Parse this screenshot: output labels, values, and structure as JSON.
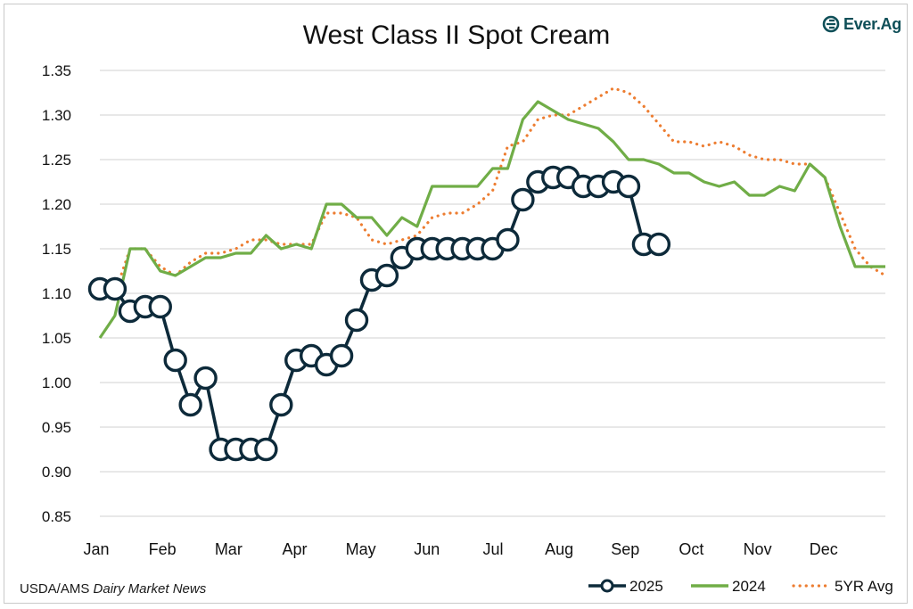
{
  "source": {
    "prefix": "USDA/AMS ",
    "italic": "Dairy Market News"
  },
  "logo": {
    "text": "Ever.Ag",
    "icon": "ever-ag-logo-icon",
    "color": "#0f4f58"
  },
  "chart_data": {
    "type": "line",
    "title": "West Class II Spot Cream",
    "xlabel": "",
    "ylabel": "",
    "ylim": [
      0.85,
      1.35
    ],
    "yticks": [
      "0.85",
      "0.90",
      "0.95",
      "1.00",
      "1.05",
      "1.10",
      "1.15",
      "1.20",
      "1.25",
      "1.30",
      "1.35"
    ],
    "x_unit": "week",
    "xlim": [
      0,
      52
    ],
    "categories": [
      "Jan",
      "Feb",
      "Mar",
      "Apr",
      "May",
      "Jun",
      "Jul",
      "Aug",
      "Sep",
      "Oct",
      "Nov",
      "Dec"
    ],
    "grid": true,
    "legend_position": "bottom-right",
    "series": [
      {
        "name": "2025",
        "color": "#0d2a3a",
        "style": "line-circle-markers",
        "x": [
          0,
          1,
          2,
          3,
          4,
          5,
          6,
          7,
          8,
          9,
          10,
          11,
          12,
          13,
          14,
          15,
          16,
          17,
          18,
          19,
          20,
          21,
          22,
          23,
          24,
          25,
          26,
          27,
          28,
          29,
          30,
          31,
          32,
          33,
          34,
          35,
          36,
          37
        ],
        "values": [
          1.105,
          1.105,
          1.08,
          1.085,
          1.085,
          1.025,
          0.975,
          1.005,
          0.925,
          0.925,
          0.925,
          0.925,
          0.975,
          1.025,
          1.03,
          1.02,
          1.03,
          1.07,
          1.115,
          1.12,
          1.14,
          1.15,
          1.15,
          1.15,
          1.15,
          1.15,
          1.15,
          1.16,
          1.205,
          1.225,
          1.23,
          1.23,
          1.22,
          1.22,
          1.225,
          1.22,
          1.155,
          1.155
        ]
      },
      {
        "name": "2024",
        "color": "#70ad47",
        "style": "solid",
        "x": [
          0,
          1,
          2,
          3,
          4,
          5,
          6,
          7,
          8,
          9,
          10,
          11,
          12,
          13,
          14,
          15,
          16,
          17,
          18,
          19,
          20,
          21,
          22,
          23,
          24,
          25,
          26,
          27,
          28,
          29,
          30,
          31,
          32,
          33,
          34,
          35,
          36,
          37,
          38,
          39,
          40,
          41,
          42,
          43,
          44,
          45,
          46,
          47,
          48,
          49,
          50,
          51,
          52
        ],
        "values": [
          1.05,
          1.075,
          1.15,
          1.15,
          1.125,
          1.12,
          1.13,
          1.14,
          1.14,
          1.145,
          1.145,
          1.165,
          1.15,
          1.155,
          1.15,
          1.2,
          1.2,
          1.185,
          1.185,
          1.165,
          1.185,
          1.175,
          1.22,
          1.22,
          1.22,
          1.22,
          1.24,
          1.24,
          1.295,
          1.315,
          1.305,
          1.295,
          1.29,
          1.285,
          1.27,
          1.25,
          1.25,
          1.245,
          1.235,
          1.235,
          1.225,
          1.22,
          1.225,
          1.21,
          1.21,
          1.22,
          1.215,
          1.245,
          1.23,
          1.175,
          1.13,
          1.13,
          1.13
        ]
      },
      {
        "name": "5YR Avg",
        "color": "#ed7d31",
        "style": "dotted",
        "x": [
          0,
          1,
          2,
          3,
          4,
          5,
          6,
          7,
          8,
          9,
          10,
          11,
          12,
          13,
          14,
          15,
          16,
          17,
          18,
          19,
          20,
          21,
          22,
          23,
          24,
          25,
          26,
          27,
          28,
          29,
          30,
          31,
          32,
          33,
          34,
          35,
          36,
          37,
          38,
          39,
          40,
          41,
          42,
          43,
          44,
          45,
          46,
          47,
          48,
          49,
          50,
          51,
          52
        ],
        "values": [
          1.11,
          1.1,
          1.15,
          1.15,
          1.13,
          1.12,
          1.135,
          1.145,
          1.145,
          1.15,
          1.16,
          1.16,
          1.155,
          1.155,
          1.155,
          1.19,
          1.19,
          1.185,
          1.16,
          1.155,
          1.16,
          1.165,
          1.185,
          1.19,
          1.19,
          1.2,
          1.215,
          1.265,
          1.27,
          1.295,
          1.3,
          1.3,
          1.31,
          1.32,
          1.33,
          1.325,
          1.31,
          1.29,
          1.27,
          1.27,
          1.265,
          1.27,
          1.265,
          1.255,
          1.25,
          1.25,
          1.245,
          1.245,
          1.23,
          1.19,
          1.15,
          1.13,
          1.12
        ]
      }
    ]
  }
}
